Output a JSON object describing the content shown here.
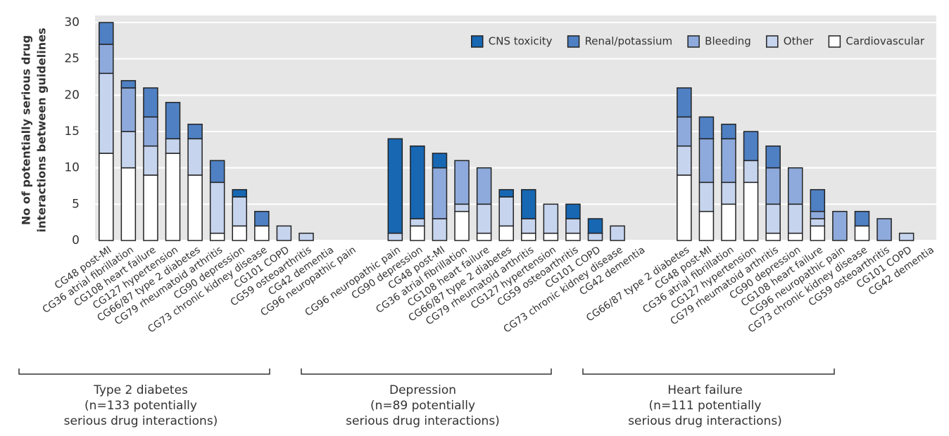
{
  "chart_data": {
    "type": "stacked-bar",
    "ylabel": [
      "No of potentially serious drug",
      "interactions between guidelines"
    ],
    "categories": [
      "CG48 post-MI",
      "CG36 atrial fibrillation",
      "CG108 heart failure",
      "CG127 hypertension",
      "CG66/87 type 2 diabetes",
      "CG79 rheumatoid arthritis",
      "CG90 depression",
      "CG73 chronic kidney disease",
      "CG101 COPD",
      "CG59 osteoarthritis",
      "CG42 dementia",
      "CG96 neuropathic pain",
      null,
      "CG96 neuropathic pain",
      "CG90 depression",
      "CG48 post-MI",
      "CG36 atrial fibrillation",
      "CG108 heart failure",
      "CG66/87 type 2 diabetes",
      "CG79 rheumatoid arthritis",
      "CG127 hypertension",
      "CG59 osteoarthritis",
      "CG101 COPD",
      "CG73 chronic kidney disease",
      "CG42 dementia",
      null,
      "CG66/87 type 2 diabetes",
      "CG48 post-MI",
      "CG36 atrial fibrillation",
      "CG127 hypertension",
      "CG79 rheumatoid arthritis",
      "CG90 depression",
      "CG108 heart failure",
      "CG96 neuropathic pain",
      "CG73 chronic kidney disease",
      "CG59 osteoarthritis",
      "CG101 COPD",
      "CG42 dementia"
    ],
    "series": [
      {
        "name": "Cardiovascular",
        "color": "#ffffff",
        "values": [
          12,
          10,
          9,
          12,
          9,
          1,
          2,
          2,
          0,
          0,
          0,
          0,
          null,
          0,
          2,
          0,
          4,
          1,
          2,
          1,
          1,
          1,
          0,
          0,
          0,
          null,
          9,
          4,
          5,
          8,
          1,
          1,
          2,
          0,
          2,
          0,
          0,
          0
        ]
      },
      {
        "name": "Other",
        "color": "#c6d4ee",
        "values": [
          11,
          5,
          4,
          2,
          5,
          7,
          4,
          0,
          2,
          1,
          0,
          0,
          null,
          1,
          1,
          3,
          1,
          4,
          4,
          2,
          4,
          2,
          1,
          2,
          0,
          null,
          4,
          4,
          3,
          3,
          4,
          4,
          1,
          0,
          0,
          0,
          1,
          0
        ]
      },
      {
        "name": "Bleeding",
        "color": "#8eaadc",
        "values": [
          4,
          6,
          4,
          0,
          0,
          0,
          0,
          0,
          0,
          0,
          0,
          0,
          null,
          0,
          0,
          7,
          6,
          5,
          0,
          0,
          0,
          0,
          0,
          0,
          0,
          null,
          4,
          6,
          6,
          0,
          5,
          5,
          1,
          4,
          0,
          3,
          0,
          0
        ]
      },
      {
        "name": "Renal/potassium",
        "color": "#4f80c3",
        "values": [
          3,
          1,
          4,
          5,
          2,
          3,
          0,
          2,
          0,
          0,
          0,
          0,
          null,
          0,
          0,
          0,
          0,
          0,
          0,
          0,
          0,
          0,
          0,
          0,
          0,
          null,
          4,
          3,
          2,
          4,
          3,
          0,
          3,
          0,
          2,
          0,
          0,
          0
        ]
      },
      {
        "name": "CNS toxicity",
        "color": "#1767b3",
        "values": [
          0,
          0,
          0,
          0,
          0,
          0,
          1,
          0,
          0,
          0,
          0,
          0,
          null,
          13,
          10,
          2,
          0,
          0,
          1,
          4,
          0,
          2,
          2,
          0,
          0,
          null,
          0,
          0,
          0,
          0,
          0,
          0,
          0,
          0,
          0,
          0,
          0,
          0
        ]
      }
    ],
    "ylim": [
      0,
      30
    ],
    "yticks": [
      0,
      5,
      10,
      15,
      20,
      25,
      30
    ],
    "grid": true,
    "groups": [
      {
        "label": "Type 2 diabetes",
        "note": [
          "(n=133 potentially",
          "serious drug interactions)"
        ]
      },
      {
        "label": "Depression",
        "note": [
          "(n=89 potentially",
          "serious drug interactions)"
        ]
      },
      {
        "label": "Heart failure",
        "note": [
          "(n=111 potentially",
          "serious drug interactions)"
        ]
      }
    ]
  }
}
